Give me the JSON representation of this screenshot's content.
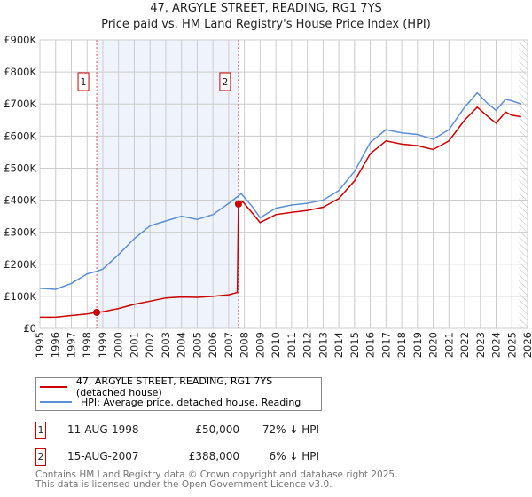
{
  "chart_data": {
    "type": "line",
    "title": "47, ARGYLE STREET, READING, RG1 7YS",
    "subtitle": "Price paid vs. HM Land Registry's House Price Index (HPI)",
    "xlim": [
      1995,
      2026
    ],
    "ylim": [
      0,
      900000
    ],
    "x_ticks": [
      "1995",
      "1996",
      "1997",
      "1998",
      "1999",
      "2000",
      "2001",
      "2002",
      "2003",
      "2004",
      "2005",
      "2006",
      "2007",
      "2008",
      "2009",
      "2010",
      "2011",
      "2012",
      "2013",
      "2014",
      "2015",
      "2016",
      "2017",
      "2018",
      "2019",
      "2020",
      "2021",
      "2022",
      "2023",
      "2024",
      "2025",
      "2026"
    ],
    "y_ticks": [
      {
        "v": 0,
        "label": "£0"
      },
      {
        "v": 100000,
        "label": "£100K"
      },
      {
        "v": 200000,
        "label": "£200K"
      },
      {
        "v": 300000,
        "label": "£300K"
      },
      {
        "v": 400000,
        "label": "£400K"
      },
      {
        "v": 500000,
        "label": "£500K"
      },
      {
        "v": 600000,
        "label": "£600K"
      },
      {
        "v": 700000,
        "label": "£700K"
      },
      {
        "v": 800000,
        "label": "£800K"
      },
      {
        "v": 900000,
        "label": "£900K"
      }
    ],
    "series": [
      {
        "name": "47, ARGYLE STREET, READING, RG1 7YS (detached house)",
        "color": "#cc0000",
        "points": [
          [
            1995,
            35000
          ],
          [
            1996,
            35000
          ],
          [
            1997,
            40000
          ],
          [
            1998,
            45000
          ],
          [
            1998.61,
            50000
          ],
          [
            1999,
            52000
          ],
          [
            2000,
            62000
          ],
          [
            2001,
            75000
          ],
          [
            2002,
            85000
          ],
          [
            2003,
            95000
          ],
          [
            2004,
            98000
          ],
          [
            2005,
            97000
          ],
          [
            2006,
            100000
          ],
          [
            2007,
            105000
          ],
          [
            2007.55,
            112000
          ],
          [
            2007.62,
            388000
          ],
          [
            2007.9,
            395000
          ],
          [
            2008.5,
            360000
          ],
          [
            2009,
            330000
          ],
          [
            2010,
            355000
          ],
          [
            2011,
            362000
          ],
          [
            2012,
            368000
          ],
          [
            2013,
            378000
          ],
          [
            2014,
            405000
          ],
          [
            2015,
            460000
          ],
          [
            2016,
            545000
          ],
          [
            2017,
            585000
          ],
          [
            2018,
            575000
          ],
          [
            2019,
            570000
          ],
          [
            2020,
            558000
          ],
          [
            2021,
            585000
          ],
          [
            2022,
            650000
          ],
          [
            2022.8,
            690000
          ],
          [
            2023.5,
            660000
          ],
          [
            2024,
            640000
          ],
          [
            2024.6,
            675000
          ],
          [
            2025,
            665000
          ],
          [
            2025.6,
            660000
          ]
        ]
      },
      {
        "name": "HPI: Average price, detached house, Reading",
        "color": "#5b8fd6",
        "points": [
          [
            1995,
            125000
          ],
          [
            1996,
            122000
          ],
          [
            1997,
            140000
          ],
          [
            1998,
            170000
          ],
          [
            1998.61,
            178000
          ],
          [
            1999,
            185000
          ],
          [
            2000,
            230000
          ],
          [
            2001,
            280000
          ],
          [
            2002,
            320000
          ],
          [
            2003,
            335000
          ],
          [
            2004,
            350000
          ],
          [
            2005,
            340000
          ],
          [
            2006,
            355000
          ],
          [
            2007,
            390000
          ],
          [
            2007.8,
            420000
          ],
          [
            2008.5,
            380000
          ],
          [
            2009,
            345000
          ],
          [
            2010,
            375000
          ],
          [
            2011,
            385000
          ],
          [
            2012,
            390000
          ],
          [
            2013,
            400000
          ],
          [
            2014,
            430000
          ],
          [
            2015,
            490000
          ],
          [
            2016,
            580000
          ],
          [
            2017,
            620000
          ],
          [
            2018,
            610000
          ],
          [
            2019,
            605000
          ],
          [
            2020,
            590000
          ],
          [
            2021,
            620000
          ],
          [
            2022,
            690000
          ],
          [
            2022.8,
            735000
          ],
          [
            2023.5,
            700000
          ],
          [
            2024,
            680000
          ],
          [
            2024.6,
            715000
          ],
          [
            2025,
            710000
          ],
          [
            2025.6,
            700000
          ]
        ]
      }
    ],
    "sales": [
      {
        "id": "1",
        "x": 1998.61,
        "y": 50000
      },
      {
        "id": "2",
        "x": 2007.62,
        "y": 388000
      }
    ],
    "shaded_range": [
      1998.61,
      2007.62
    ],
    "hatched_from": 2025.45
  },
  "legend": {
    "red": "47, ARGYLE STREET, READING, RG1 7YS (detached house)",
    "blue": "HPI: Average price, detached house, Reading"
  },
  "table": [
    {
      "id": "1",
      "date": "11-AUG-1998",
      "price": "£50,000",
      "hpi": "72% ↓ HPI"
    },
    {
      "id": "2",
      "date": "15-AUG-2007",
      "price": "£388,000",
      "hpi": "6% ↓ HPI"
    }
  ],
  "footer": {
    "line1": "Contains HM Land Registry data © Crown copyright and database right 2025.",
    "line2": "This data is licensed under the Open Government Licence v3.0."
  }
}
